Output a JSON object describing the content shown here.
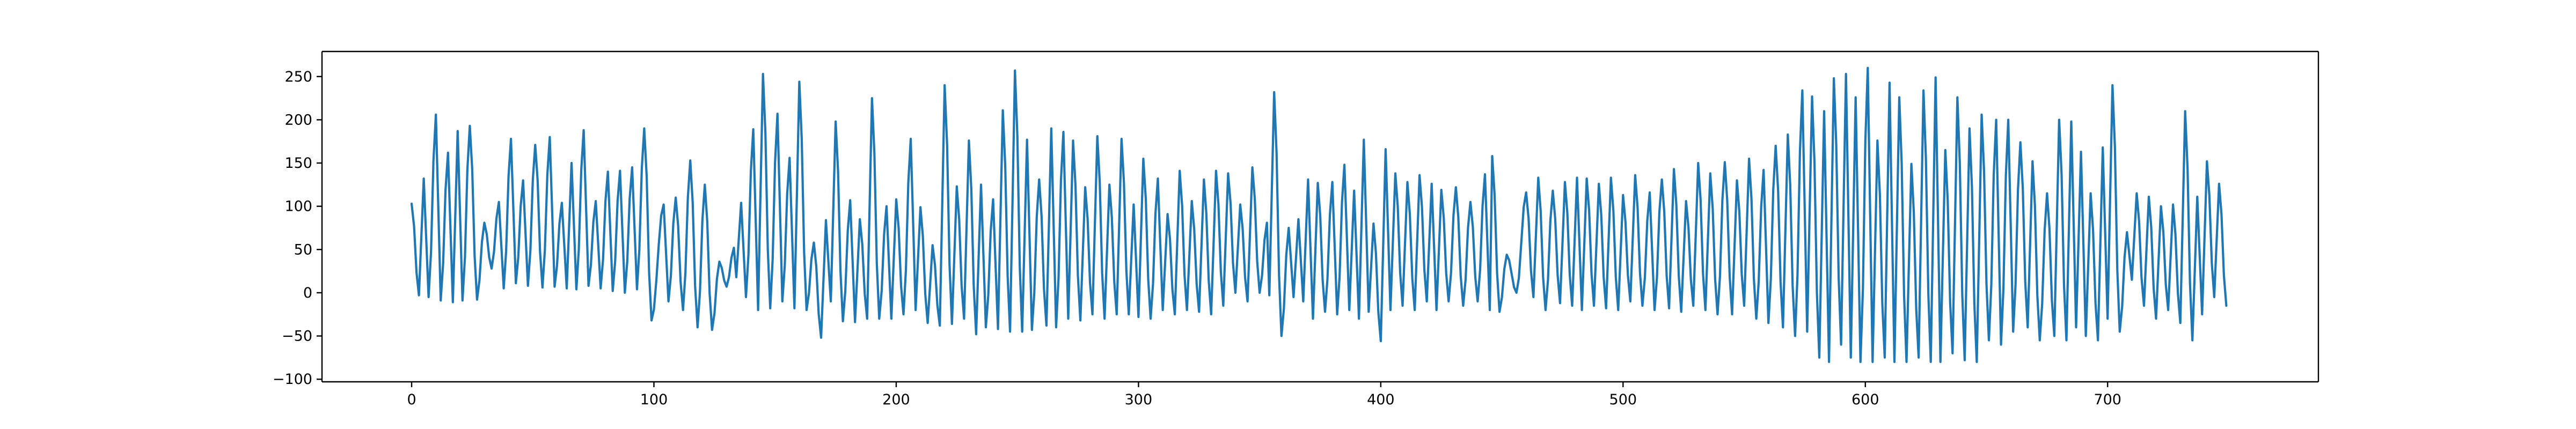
{
  "chart_data": {
    "type": "line",
    "title": "",
    "xlabel": "",
    "ylabel": "",
    "xlim": [
      -37,
      787
    ],
    "ylim": [
      -103,
      279
    ],
    "xticks": [
      0,
      100,
      200,
      300,
      400,
      500,
      600,
      700
    ],
    "yticks": [
      -100,
      -50,
      0,
      50,
      100,
      150,
      200,
      250
    ],
    "xtick_labels": [
      "0",
      "100",
      "200",
      "300",
      "400",
      "500",
      "600",
      "700"
    ],
    "ytick_labels": [
      "−100",
      "−50",
      "0",
      "50",
      "100",
      "150",
      "200",
      "250"
    ],
    "grid": false,
    "legend": "none",
    "series": [
      {
        "color": "#1f77b4",
        "n_points": 750,
        "peaks": [
          [
            0,
            103
          ],
          [
            5,
            132
          ],
          [
            10,
            206
          ],
          [
            15,
            162
          ],
          [
            19,
            187
          ],
          [
            24,
            193
          ],
          [
            30,
            81
          ],
          [
            36,
            105
          ],
          [
            41,
            178
          ],
          [
            46,
            130
          ],
          [
            51,
            171
          ],
          [
            57,
            180
          ],
          [
            62,
            104
          ],
          [
            66,
            150
          ],
          [
            71,
            188
          ],
          [
            76,
            106
          ],
          [
            81,
            140
          ],
          [
            86,
            141
          ],
          [
            91,
            145
          ],
          [
            96,
            190
          ],
          [
            104,
            102
          ],
          [
            109,
            110
          ],
          [
            115,
            153
          ],
          [
            121,
            125
          ],
          [
            127,
            36
          ],
          [
            133,
            52
          ],
          [
            136,
            104
          ],
          [
            141,
            189
          ],
          [
            145,
            253
          ],
          [
            151,
            207
          ],
          [
            156,
            156
          ],
          [
            160,
            244
          ],
          [
            166,
            58
          ],
          [
            171,
            84
          ],
          [
            175,
            198
          ],
          [
            181,
            107
          ],
          [
            185,
            85
          ],
          [
            190,
            225
          ],
          [
            196,
            100
          ],
          [
            200,
            108
          ],
          [
            206,
            178
          ],
          [
            210,
            99
          ],
          [
            215,
            55
          ],
          [
            220,
            240
          ],
          [
            225,
            123
          ],
          [
            230,
            176
          ],
          [
            235,
            125
          ],
          [
            240,
            108
          ],
          [
            244,
            211
          ],
          [
            249,
            257
          ],
          [
            254,
            177
          ],
          [
            259,
            131
          ],
          [
            264,
            190
          ],
          [
            269,
            186
          ],
          [
            273,
            176
          ],
          [
            278,
            122
          ],
          [
            283,
            181
          ],
          [
            288,
            125
          ],
          [
            293,
            178
          ],
          [
            298,
            102
          ],
          [
            302,
            155
          ],
          [
            308,
            132
          ],
          [
            312,
            91
          ],
          [
            317,
            141
          ],
          [
            322,
            106
          ],
          [
            327,
            131
          ],
          [
            332,
            141
          ],
          [
            337,
            138
          ],
          [
            342,
            102
          ],
          [
            347,
            145
          ],
          [
            353,
            81
          ],
          [
            356,
            232
          ],
          [
            362,
            75
          ],
          [
            366,
            85
          ],
          [
            370,
            131
          ],
          [
            374,
            127
          ],
          [
            380,
            128
          ],
          [
            385,
            148
          ],
          [
            389,
            118
          ],
          [
            393,
            177
          ],
          [
            397,
            80
          ],
          [
            402,
            166
          ],
          [
            406,
            138
          ],
          [
            411,
            128
          ],
          [
            416,
            136
          ],
          [
            421,
            126
          ],
          [
            425,
            119
          ],
          [
            431,
            122
          ],
          [
            437,
            105
          ],
          [
            443,
            137
          ],
          [
            446,
            158
          ],
          [
            452,
            44
          ],
          [
            460,
            116
          ],
          [
            465,
            133
          ],
          [
            471,
            118
          ],
          [
            476,
            128
          ],
          [
            481,
            133
          ],
          [
            485,
            132
          ],
          [
            490,
            126
          ],
          [
            495,
            133
          ],
          [
            500,
            113
          ],
          [
            505,
            136
          ],
          [
            511,
            116
          ],
          [
            516,
            131
          ],
          [
            521,
            143
          ],
          [
            526,
            106
          ],
          [
            531,
            150
          ],
          [
            536,
            138
          ],
          [
            542,
            151
          ],
          [
            547,
            130
          ],
          [
            552,
            155
          ],
          [
            558,
            142
          ],
          [
            563,
            170
          ],
          [
            568,
            183
          ],
          [
            574,
            234
          ],
          [
            578,
            227
          ],
          [
            583,
            210
          ],
          [
            587,
            248
          ],
          [
            592,
            253
          ],
          [
            596,
            226
          ],
          [
            601,
            260
          ],
          [
            605,
            176
          ],
          [
            610,
            243
          ],
          [
            614,
            226
          ],
          [
            619,
            149
          ],
          [
            624,
            234
          ],
          [
            629,
            249
          ],
          [
            633,
            165
          ],
          [
            638,
            226
          ],
          [
            643,
            190
          ],
          [
            648,
            206
          ],
          [
            654,
            200
          ],
          [
            659,
            200
          ],
          [
            664,
            174
          ],
          [
            669,
            152
          ],
          [
            675,
            115
          ],
          [
            680,
            200
          ],
          [
            685,
            198
          ],
          [
            689,
            163
          ],
          [
            693,
            115
          ],
          [
            698,
            168
          ],
          [
            702,
            240
          ],
          [
            708,
            70
          ],
          [
            712,
            115
          ],
          [
            717,
            111
          ],
          [
            722,
            100
          ],
          [
            727,
            102
          ],
          [
            732,
            210
          ],
          [
            737,
            111
          ],
          [
            741,
            152
          ],
          [
            746,
            126
          ]
        ],
        "troughs": [
          [
            3,
            -3
          ],
          [
            7,
            -5
          ],
          [
            12,
            -9
          ],
          [
            17,
            -11
          ],
          [
            21,
            -9
          ],
          [
            27,
            -8
          ],
          [
            33,
            28
          ],
          [
            38,
            5
          ],
          [
            43,
            11
          ],
          [
            48,
            8
          ],
          [
            54,
            6
          ],
          [
            59,
            7
          ],
          [
            64,
            5
          ],
          [
            68,
            4
          ],
          [
            73,
            8
          ],
          [
            78,
            5
          ],
          [
            83,
            2
          ],
          [
            88,
            0
          ],
          [
            93,
            4
          ],
          [
            99,
            -32
          ],
          [
            106,
            -10
          ],
          [
            112,
            -20
          ],
          [
            118,
            -40
          ],
          [
            124,
            -43
          ],
          [
            130,
            7
          ],
          [
            134,
            18
          ],
          [
            138,
            -5
          ],
          [
            143,
            -20
          ],
          [
            148,
            -18
          ],
          [
            153,
            -10
          ],
          [
            158,
            -18
          ],
          [
            163,
            -20
          ],
          [
            169,
            -52
          ],
          [
            173,
            -10
          ],
          [
            178,
            -33
          ],
          [
            183,
            -34
          ],
          [
            188,
            -30
          ],
          [
            193,
            -30
          ],
          [
            198,
            -30
          ],
          [
            203,
            -25
          ],
          [
            208,
            -20
          ],
          [
            213,
            -35
          ],
          [
            218,
            -38
          ],
          [
            223,
            -36
          ],
          [
            228,
            -30
          ],
          [
            233,
            -48
          ],
          [
            237,
            -40
          ],
          [
            242,
            -42
          ],
          [
            247,
            -45
          ],
          [
            252,
            -45
          ],
          [
            256,
            -43
          ],
          [
            262,
            -38
          ],
          [
            266,
            -40
          ],
          [
            271,
            -30
          ],
          [
            276,
            -32
          ],
          [
            281,
            -25
          ],
          [
            286,
            -30
          ],
          [
            291,
            -25
          ],
          [
            296,
            -25
          ],
          [
            300,
            -28
          ],
          [
            305,
            -30
          ],
          [
            310,
            -20
          ],
          [
            315,
            -25
          ],
          [
            320,
            -20
          ],
          [
            325,
            -22
          ],
          [
            330,
            -25
          ],
          [
            335,
            -15
          ],
          [
            340,
            0
          ],
          [
            345,
            -10
          ],
          [
            350,
            0
          ],
          [
            354,
            -3
          ],
          [
            359,
            -50
          ],
          [
            364,
            -5
          ],
          [
            368,
            -10
          ],
          [
            372,
            -30
          ],
          [
            377,
            -22
          ],
          [
            382,
            -25
          ],
          [
            387,
            -20
          ],
          [
            391,
            -30
          ],
          [
            395,
            -22
          ],
          [
            400,
            -56
          ],
          [
            404,
            -20
          ],
          [
            409,
            -15
          ],
          [
            414,
            -20
          ],
          [
            419,
            -10
          ],
          [
            423,
            -20
          ],
          [
            428,
            -10
          ],
          [
            434,
            -15
          ],
          [
            440,
            -10
          ],
          [
            445,
            -20
          ],
          [
            449,
            -22
          ],
          [
            456,
            0
          ],
          [
            463,
            -5
          ],
          [
            468,
            -20
          ],
          [
            474,
            -12
          ],
          [
            479,
            -15
          ],
          [
            483,
            -20
          ],
          [
            488,
            -15
          ],
          [
            493,
            -18
          ],
          [
            498,
            -20
          ],
          [
            503,
            -10
          ],
          [
            508,
            -15
          ],
          [
            513,
            -20
          ],
          [
            519,
            -18
          ],
          [
            524,
            -22
          ],
          [
            529,
            -15
          ],
          [
            534,
            -20
          ],
          [
            539,
            -25
          ],
          [
            545,
            -25
          ],
          [
            550,
            -15
          ],
          [
            555,
            -30
          ],
          [
            560,
            -35
          ],
          [
            566,
            -40
          ],
          [
            571,
            -50
          ],
          [
            576,
            -45
          ],
          [
            581,
            -75
          ],
          [
            585,
            -80
          ],
          [
            590,
            -60
          ],
          [
            594,
            -75
          ],
          [
            598,
            -80
          ],
          [
            603,
            -80
          ],
          [
            608,
            -75
          ],
          [
            612,
            -80
          ],
          [
            617,
            -80
          ],
          [
            622,
            -75
          ],
          [
            627,
            -80
          ],
          [
            631,
            -80
          ],
          [
            636,
            -70
          ],
          [
            641,
            -78
          ],
          [
            646,
            -80
          ],
          [
            651,
            -55
          ],
          [
            656,
            -60
          ],
          [
            661,
            -45
          ],
          [
            667,
            -40
          ],
          [
            672,
            -55
          ],
          [
            678,
            -50
          ],
          [
            683,
            -55
          ],
          [
            687,
            -40
          ],
          [
            691,
            -50
          ],
          [
            696,
            -55
          ],
          [
            700,
            -30
          ],
          [
            705,
            -45
          ],
          [
            710,
            15
          ],
          [
            715,
            -15
          ],
          [
            720,
            -30
          ],
          [
            725,
            -20
          ],
          [
            730,
            -35
          ],
          [
            735,
            -55
          ],
          [
            739,
            -25
          ],
          [
            744,
            -5
          ],
          [
            749,
            -15
          ]
        ]
      }
    ]
  }
}
